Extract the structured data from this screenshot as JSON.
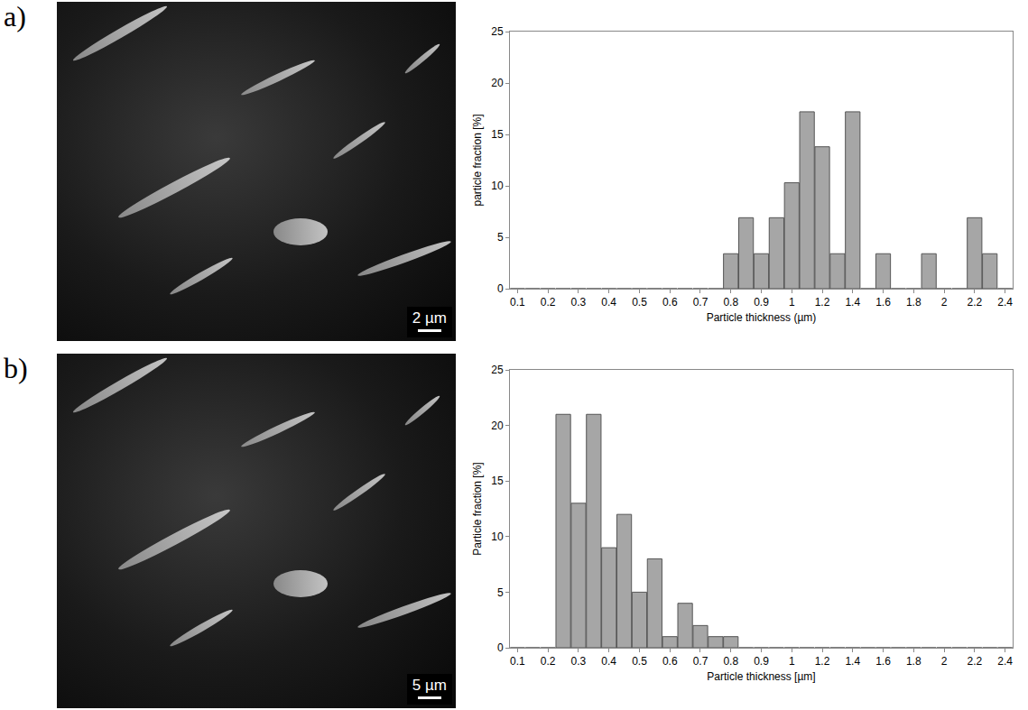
{
  "panels": [
    {
      "label": "a)",
      "image": {
        "scale_bar": "2 µm"
      }
    },
    {
      "label": "b)",
      "image": {
        "scale_bar": "5 µm"
      }
    }
  ],
  "chart_data": [
    {
      "type": "bar",
      "x_label": "Particle thickness (µm)",
      "y_label": "particle fraction [%]",
      "categories": [
        "0.1",
        null,
        "0.2",
        null,
        "0.3",
        null,
        "0.4",
        null,
        "0.5",
        null,
        "0.6",
        null,
        "0.7",
        null,
        "0.8",
        null,
        "0.9",
        null,
        "1",
        null,
        "1.2",
        null,
        "1.4",
        null,
        "1.6",
        null,
        "1.8",
        null,
        "2",
        null,
        "2.2",
        null,
        "2.4"
      ],
      "values": [
        0,
        0,
        0,
        0,
        0,
        0,
        0,
        0,
        0,
        0,
        0,
        0,
        0,
        0,
        3.4,
        6.9,
        3.4,
        6.9,
        10.3,
        17.2,
        13.8,
        3.4,
        17.2,
        0,
        3.4,
        0,
        0,
        3.4,
        0,
        0,
        6.9,
        3.4,
        0
      ],
      "color": "#a6a6a6",
      "ylim": [
        0,
        25
      ],
      "yticks": [
        0,
        5,
        10,
        15,
        20,
        25
      ],
      "grid": false
    },
    {
      "type": "bar",
      "x_label": "Particle thickness [µm]",
      "y_label": "Particle fraction [%]",
      "categories": [
        "0.1",
        null,
        "0.2",
        null,
        "0.3",
        null,
        "0.4",
        null,
        "0.5",
        null,
        "0.6",
        null,
        "0.7",
        null,
        "0.8",
        null,
        "0.9",
        null,
        "1",
        null,
        "1.2",
        null,
        "1.4",
        null,
        "1.6",
        null,
        "1.8",
        null,
        "2",
        null,
        "2.2",
        null,
        "2.4"
      ],
      "values": [
        0,
        0,
        0,
        21,
        13,
        21,
        9,
        12,
        5,
        8,
        1,
        4,
        2,
        1,
        1,
        0,
        0,
        0,
        0,
        0,
        0,
        0,
        0,
        0,
        0,
        0,
        0,
        0,
        0,
        0,
        0,
        0,
        0
      ],
      "color": "#a6a6a6",
      "ylim": [
        0,
        25
      ],
      "yticks": [
        0,
        5,
        10,
        15,
        20,
        25
      ],
      "grid": false
    }
  ]
}
